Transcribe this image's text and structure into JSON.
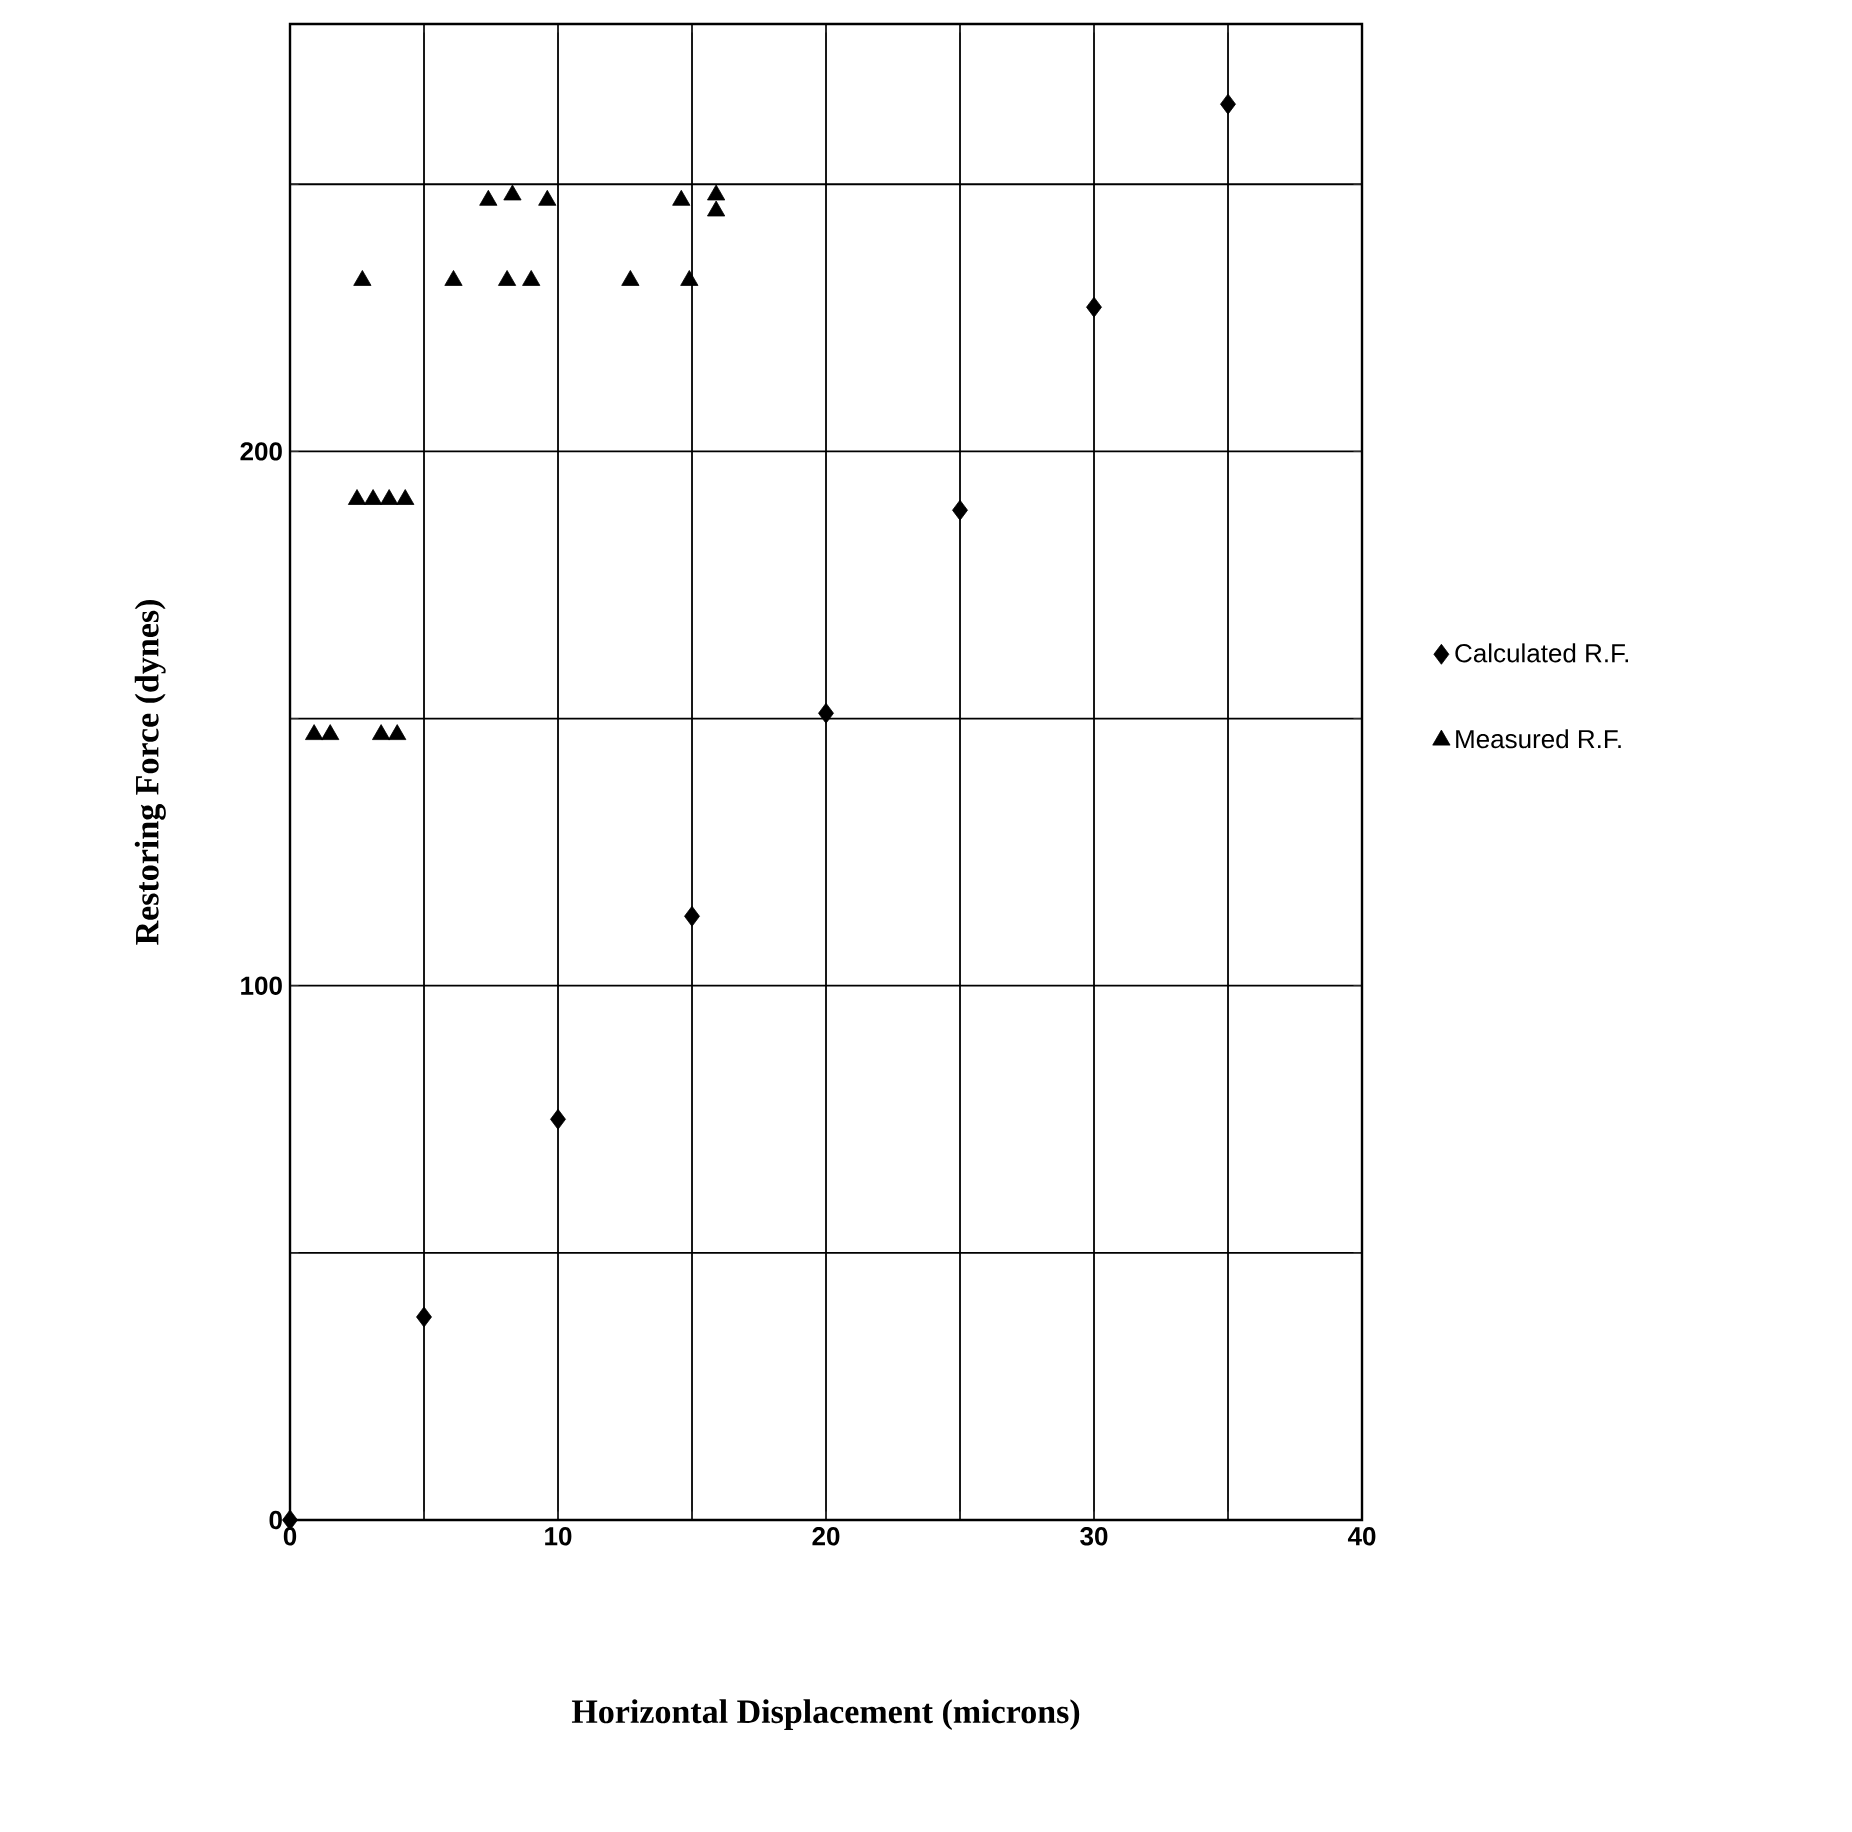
{
  "chart_data": {
    "type": "scatter",
    "xlabel": "Horizontal Displacement (microns)",
    "ylabel": "Restoring Force (dynes)",
    "xlim": [
      0,
      40
    ],
    "ylim": [
      0,
      280
    ],
    "xticks": [
      0,
      {
        "value": 5,
        "label": null
      },
      10,
      {
        "value": 15,
        "label": null
      },
      20,
      {
        "value": 25,
        "label": null
      },
      30,
      {
        "value": 35,
        "label": null
      },
      40
    ],
    "yticks": [
      0,
      {
        "value": 50,
        "label": null
      },
      100,
      {
        "value": 150,
        "label": null
      },
      200,
      {
        "value": 250,
        "label": null
      }
    ],
    "grid": true,
    "legend": "right",
    "series": [
      {
        "name": "Calculated R.F.",
        "color": "#000000",
        "marker": "diamond",
        "x": [
          0,
          5,
          10,
          15,
          20,
          25,
          30,
          35
        ],
        "values": [
          0,
          38,
          75,
          113,
          151,
          189,
          227,
          265
        ]
      },
      {
        "name": "Measured R.F.",
        "color": "#000000",
        "marker": "triangle",
        "x": [
          0.9,
          1.5,
          3.4,
          4.0,
          2.5,
          3.1,
          3.7,
          4.3,
          2.7,
          6.1,
          8.1,
          9.0,
          12.7,
          14.9,
          7.4,
          8.3,
          9.6,
          14.6,
          15.9,
          15.9
        ],
        "values": [
          147,
          147,
          147,
          147,
          191,
          191,
          191,
          191,
          232,
          232,
          232,
          232,
          232,
          232,
          247,
          248,
          247,
          247,
          248,
          245
        ]
      }
    ]
  }
}
